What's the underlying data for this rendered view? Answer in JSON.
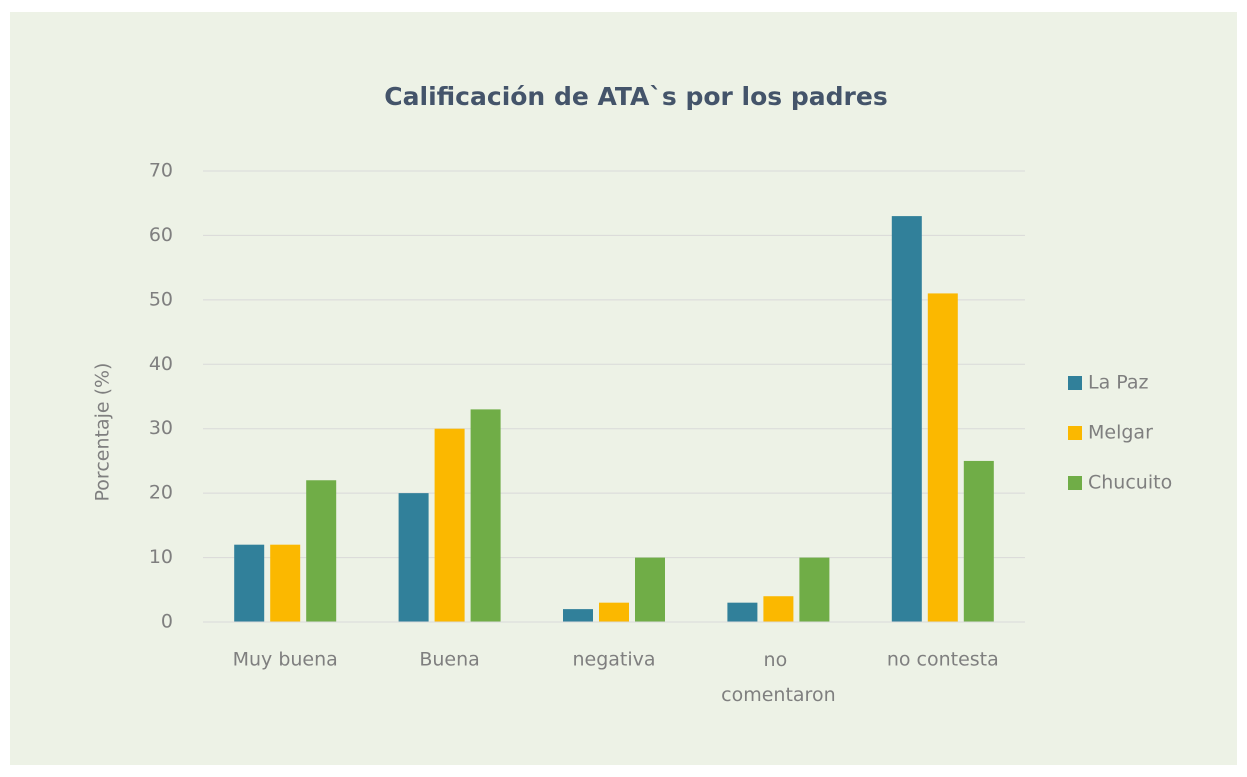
{
  "chart_data": {
    "type": "bar",
    "title": "Calificación de ATA`s por los padres",
    "y_label": "Porcentaje (%)",
    "categories": [
      "Muy buena",
      "Buena",
      "negativa",
      "no comentaron",
      "no contesta"
    ],
    "series": [
      {
        "name": "La Paz",
        "color": "#31809a",
        "values": [
          12,
          20,
          2,
          3,
          63
        ]
      },
      {
        "name": "Melgar",
        "color": "#fbb800",
        "values": [
          12,
          30,
          3,
          4,
          51
        ]
      },
      {
        "name": "Chucuito",
        "color": "#70ad47",
        "values": [
          22,
          33,
          10,
          10,
          25
        ]
      }
    ],
    "ylim": [
      0,
      70
    ],
    "yticks": [
      0,
      10,
      20,
      30,
      40,
      50,
      60,
      70
    ],
    "grid": true,
    "legend": "right"
  }
}
